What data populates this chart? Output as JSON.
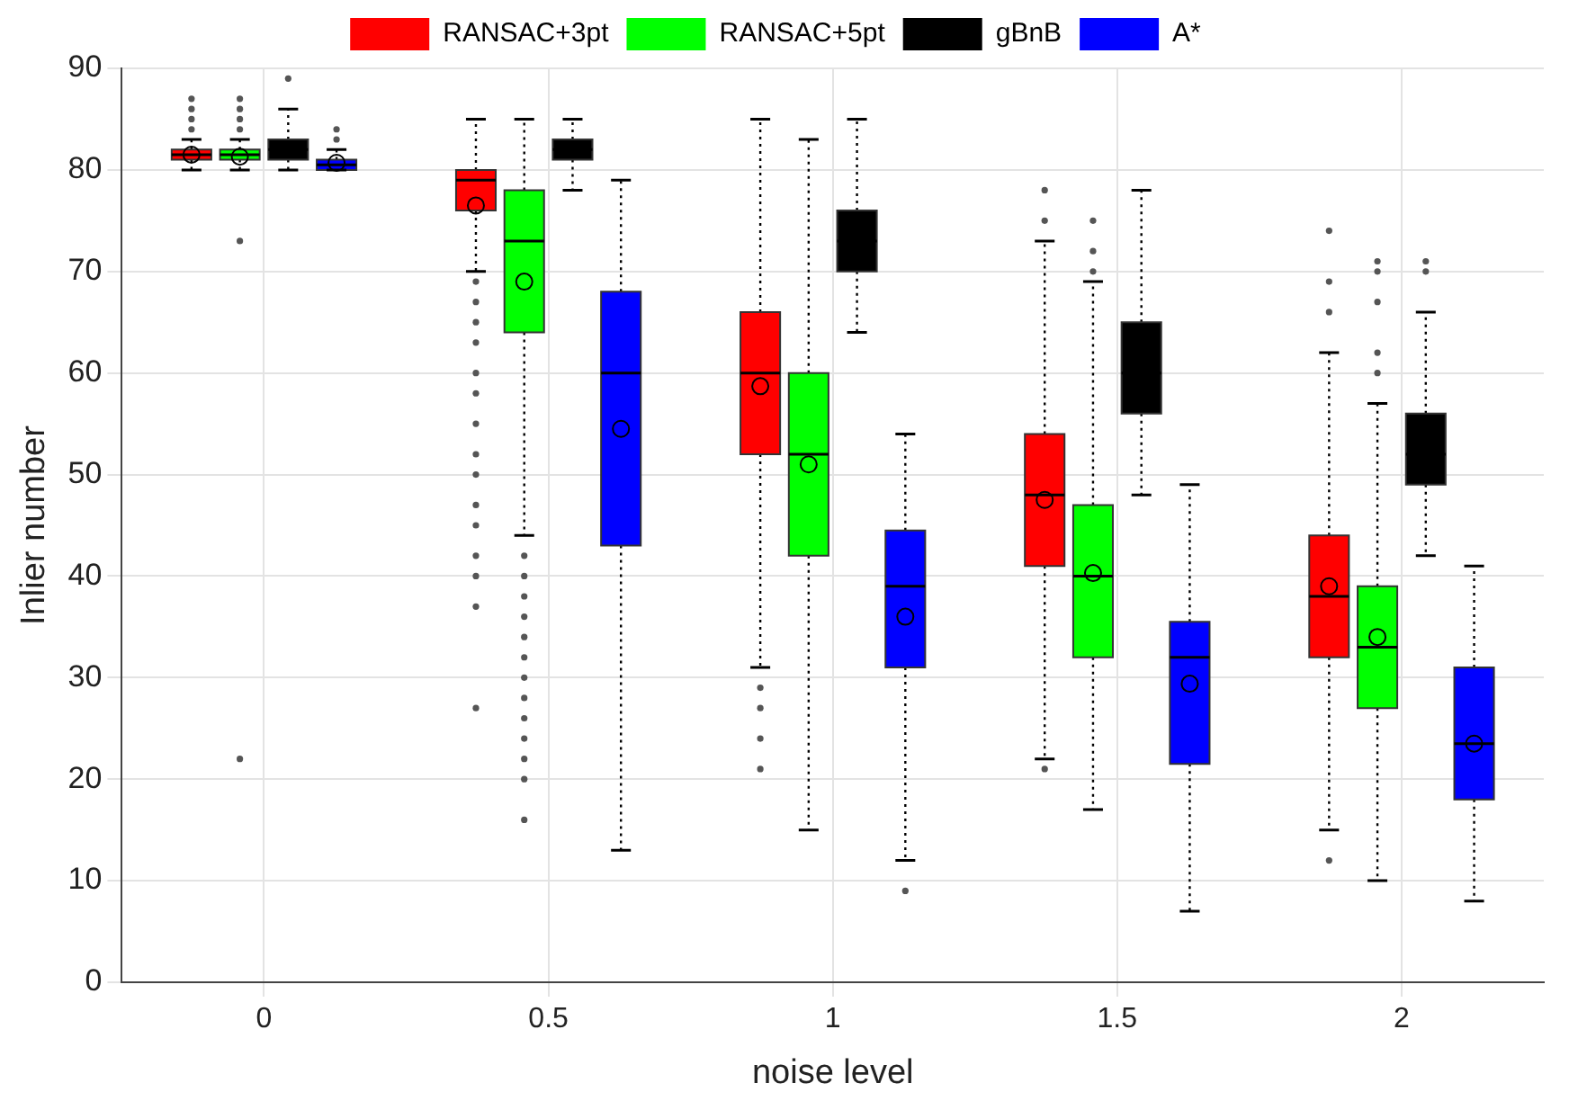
{
  "chart_data": {
    "type": "box",
    "xlabel": "noise level",
    "ylabel": "Inlier number",
    "categories": [
      "0",
      "0.5",
      "1",
      "1.5",
      "2"
    ],
    "ylim": [
      0,
      90
    ],
    "yticks": [
      0,
      10,
      20,
      30,
      40,
      50,
      60,
      70,
      80,
      90
    ],
    "grid": true,
    "legend": "top",
    "series": [
      {
        "name": "RANSAC+3pt",
        "color": "#ff0000",
        "boxes": [
          {
            "low": 80,
            "q1": 81,
            "median": 81.5,
            "q3": 82,
            "high": 83,
            "mean": 81.5,
            "outliers": [
              84,
              85,
              86,
              87
            ]
          },
          {
            "low": 70,
            "q1": 76,
            "median": 79,
            "q3": 80,
            "high": 85,
            "mean": 76.5,
            "outliers": [
              69,
              67,
              65,
              63,
              60,
              58,
              55,
              52,
              50,
              47,
              45,
              42,
              40,
              37,
              27
            ]
          },
          {
            "low": 31,
            "q1": 52,
            "median": 60,
            "q3": 66,
            "high": 85,
            "mean": 58.7,
            "outliers": [
              29,
              27,
              24,
              21
            ]
          },
          {
            "low": 22,
            "q1": 41,
            "median": 48,
            "q3": 54,
            "high": 73,
            "mean": 47.5,
            "outliers": [
              78,
              75,
              21
            ]
          },
          {
            "low": 15,
            "q1": 32,
            "median": 38,
            "q3": 44,
            "high": 62,
            "mean": 39,
            "outliers": [
              74,
              69,
              66,
              12
            ]
          }
        ]
      },
      {
        "name": "RANSAC+5pt",
        "color": "#00ff00",
        "boxes": [
          {
            "low": 80,
            "q1": 81,
            "median": 81.5,
            "q3": 82,
            "high": 83,
            "mean": 81.3,
            "outliers": [
              84,
              85,
              86,
              87,
              73,
              22
            ]
          },
          {
            "low": 44,
            "q1": 64,
            "median": 73,
            "q3": 78,
            "high": 85,
            "mean": 69,
            "outliers": [
              42,
              40,
              38,
              36,
              34,
              32,
              30,
              28,
              26,
              24,
              22,
              20,
              16
            ]
          },
          {
            "low": 15,
            "q1": 42,
            "median": 52,
            "q3": 60,
            "high": 83,
            "mean": 51
          },
          {
            "low": 17,
            "q1": 32,
            "median": 40,
            "q3": 47,
            "high": 69,
            "mean": 40.3,
            "outliers": [
              75,
              72,
              70
            ]
          },
          {
            "low": 10,
            "q1": 27,
            "median": 33,
            "q3": 39,
            "high": 57,
            "mean": 34,
            "outliers": [
              71,
              70,
              67,
              62,
              60
            ]
          }
        ]
      },
      {
        "name": "gBnB",
        "color": "#000000",
        "boxes": [
          {
            "low": 80,
            "q1": 81,
            "median": 82,
            "q3": 83,
            "high": 86,
            "outliers": [
              89
            ]
          },
          {
            "low": 78,
            "q1": 81,
            "median": 82,
            "q3": 83,
            "high": 85
          },
          {
            "low": 64,
            "q1": 70,
            "median": 73,
            "q3": 76,
            "high": 85
          },
          {
            "low": 48,
            "q1": 56,
            "median": 60,
            "q3": 65,
            "high": 78
          },
          {
            "low": 42,
            "q1": 49,
            "median": 52,
            "q3": 56,
            "high": 66,
            "outliers": [
              71,
              70
            ]
          }
        ]
      },
      {
        "name": "A*",
        "color": "#0000ff",
        "boxes": [
          {
            "low": 80,
            "q1": 80,
            "median": 80.5,
            "q3": 81,
            "high": 82,
            "mean": 80.7,
            "outliers": [
              83,
              84
            ]
          },
          {
            "low": 13,
            "q1": 43,
            "median": 60,
            "q3": 68,
            "high": 79,
            "mean": 54.5
          },
          {
            "low": 12,
            "q1": 31,
            "median": 39,
            "q3": 44.5,
            "high": 54,
            "mean": 36,
            "outliers": [
              9
            ]
          },
          {
            "low": 7,
            "q1": 21.5,
            "median": 32,
            "q3": 35.5,
            "high": 49,
            "mean": 29.4
          },
          {
            "low": 8,
            "q1": 18,
            "median": 23.5,
            "q3": 31,
            "high": 41,
            "mean": 23.5
          }
        ]
      }
    ]
  }
}
